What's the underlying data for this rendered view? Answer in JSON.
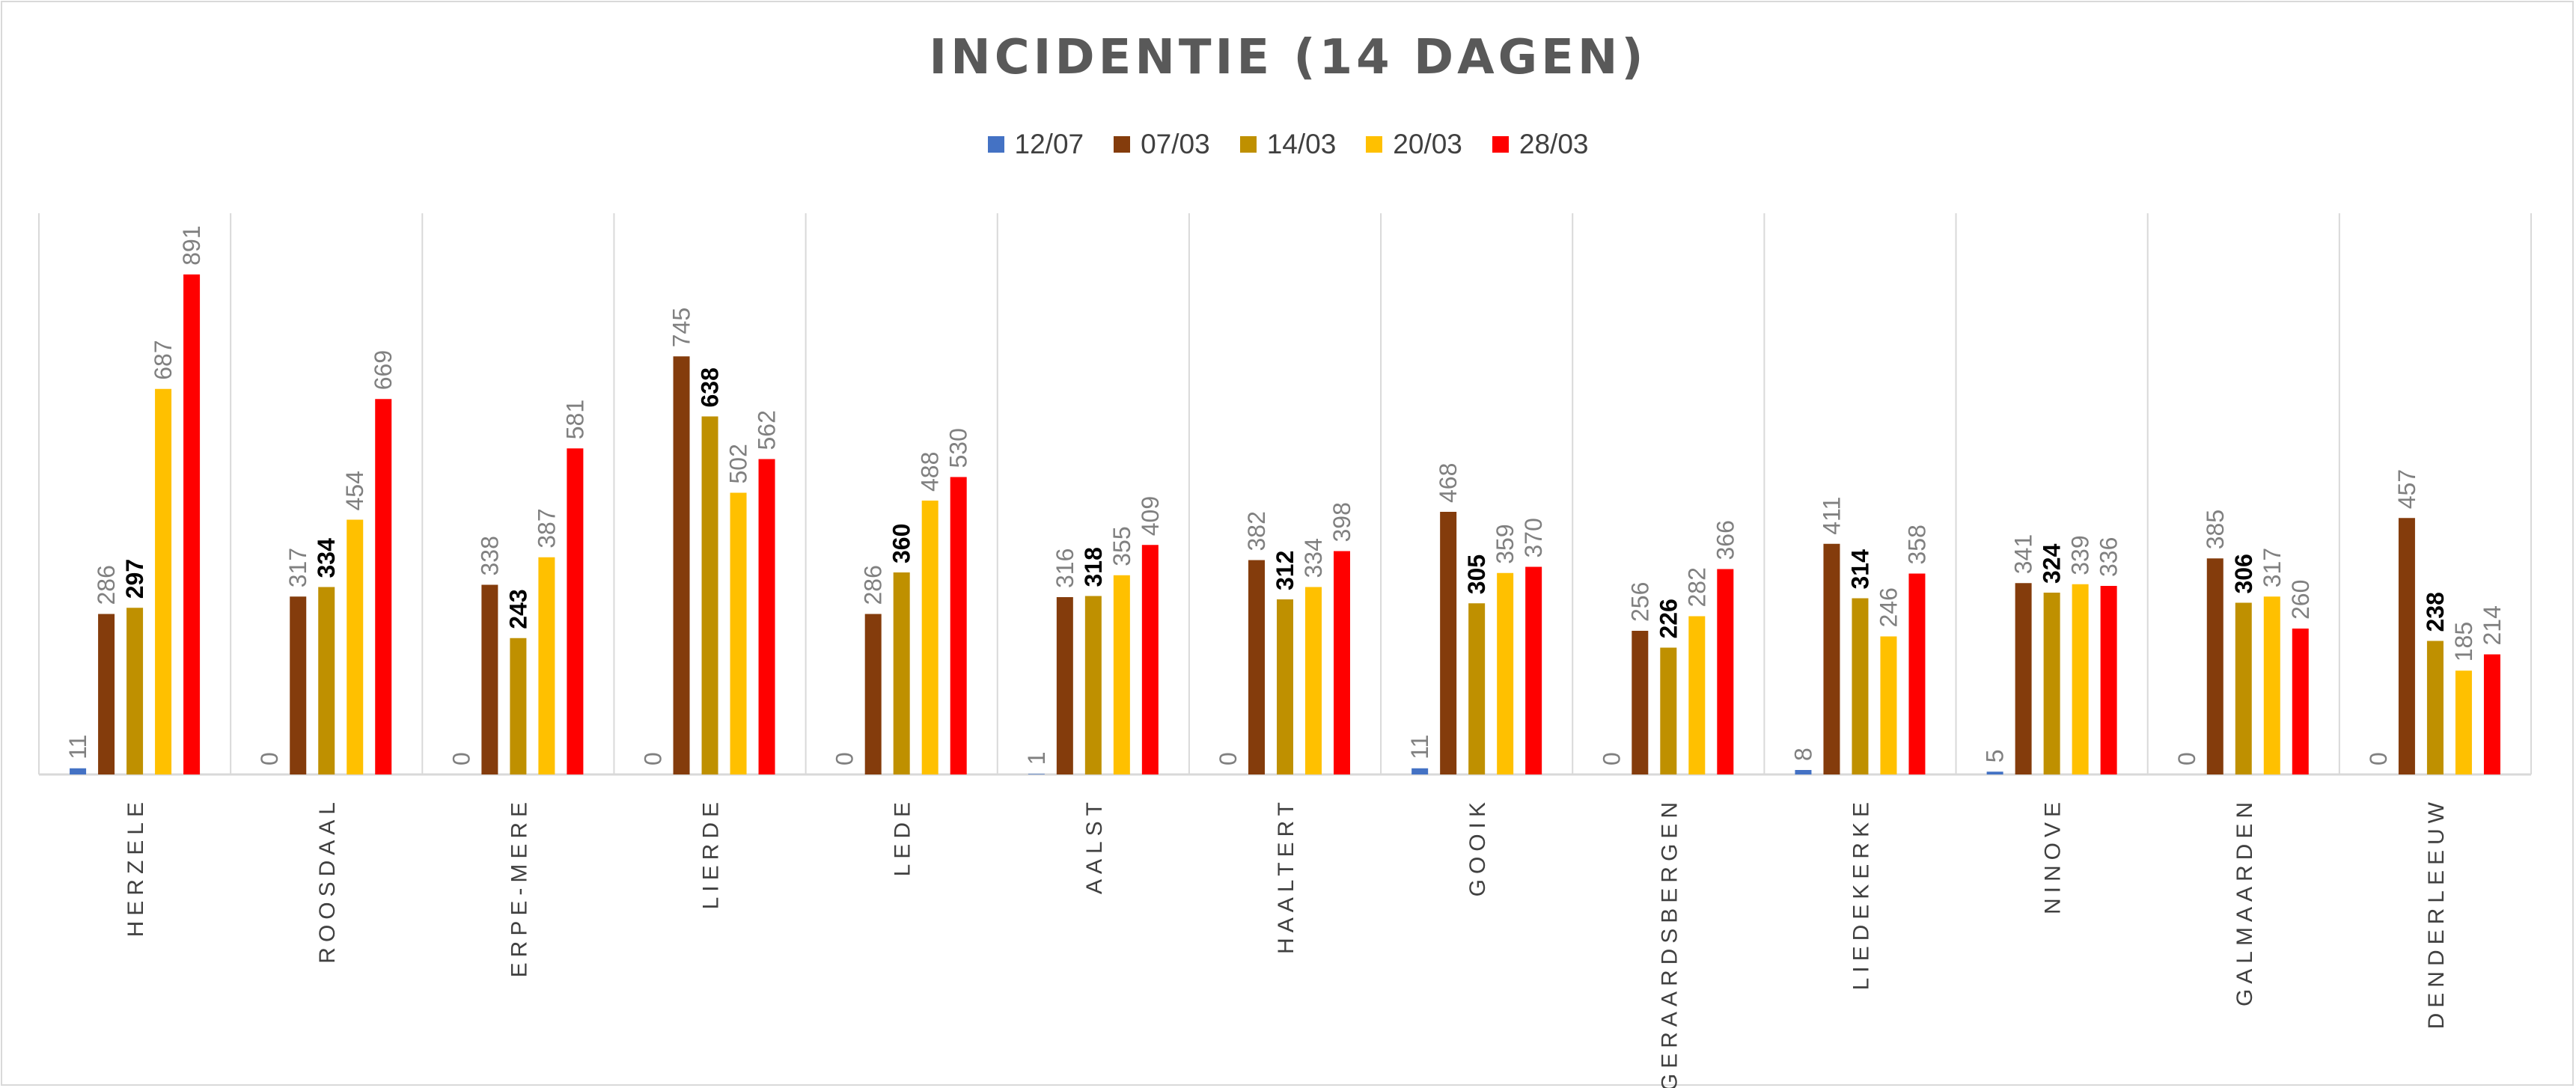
{
  "chart_data": {
    "type": "bar",
    "title": "INCIDENTIE (14 DAGEN)",
    "xlabel": "",
    "ylabel": "",
    "ylim": [
      0,
      1000
    ],
    "grid": false,
    "legend_position": "top",
    "categories": [
      "HERZELE",
      "ROOSDAAL",
      "ERPE-MERE",
      "LIERDE",
      "LEDE",
      "AALST",
      "HAALTERT",
      "GOOIK",
      "GERAARDSBERGEN",
      "LIEDEKERKE",
      "NINOVE",
      "GALMAARDEN",
      "DENDERLEEUW"
    ],
    "series": [
      {
        "name": "12/07",
        "color": "#4472c4",
        "values": [
          11,
          0,
          0,
          0,
          0,
          1,
          0,
          11,
          0,
          8,
          5,
          0,
          0
        ]
      },
      {
        "name": "07/03",
        "color": "#843c0c",
        "values": [
          286,
          317,
          338,
          745,
          286,
          316,
          382,
          468,
          256,
          411,
          341,
          385,
          457
        ]
      },
      {
        "name": "14/03",
        "color": "#bf9000",
        "values": [
          297,
          334,
          243,
          638,
          360,
          318,
          312,
          305,
          226,
          314,
          324,
          306,
          238
        ]
      },
      {
        "name": "20/03",
        "color": "#ffc000",
        "values": [
          687,
          454,
          387,
          502,
          488,
          355,
          334,
          359,
          282,
          246,
          339,
          317,
          185
        ]
      },
      {
        "name": "28/03",
        "color": "#ff0000",
        "values": [
          891,
          669,
          581,
          562,
          530,
          409,
          398,
          370,
          366,
          358,
          336,
          260,
          214
        ]
      }
    ],
    "emphasized_series": "14/03"
  }
}
